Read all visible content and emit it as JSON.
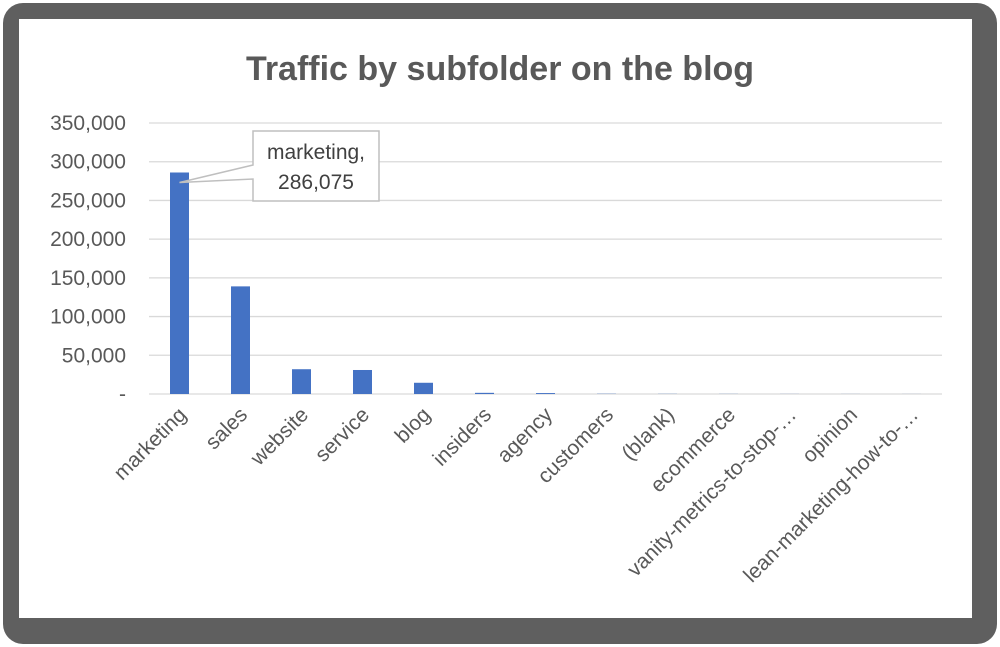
{
  "colors": {
    "bar": "#4472c4",
    "grid": "#d9d9d9",
    "text": "#595959",
    "frame": "#5f5f5f"
  },
  "chart_data": {
    "type": "bar",
    "title": "Traffic by subfolder on the blog",
    "xlabel": "",
    "ylabel": "",
    "ylim": [
      0,
      350000
    ],
    "yticks": [
      0,
      50000,
      100000,
      150000,
      200000,
      250000,
      300000,
      350000
    ],
    "ytick_labels": [
      "-",
      "50,000",
      "100,000",
      "150,000",
      "200,000",
      "250,000",
      "300,000",
      "350,000"
    ],
    "grid": true,
    "legend": false,
    "categories": [
      "marketing",
      "sales",
      "website",
      "service",
      "blog",
      "insiders",
      "agency",
      "customers",
      "(blank)",
      "ecommerce",
      "vanity-metrics-to-stop-…",
      "opinion",
      "lean-marketing-how-to-…"
    ],
    "values": [
      286075,
      139000,
      32000,
      31000,
      14500,
      1500,
      1200,
      300,
      200,
      150,
      100,
      80,
      60
    ],
    "annotation": {
      "category": "marketing",
      "line1": "marketing,",
      "line2": "286,075"
    }
  }
}
